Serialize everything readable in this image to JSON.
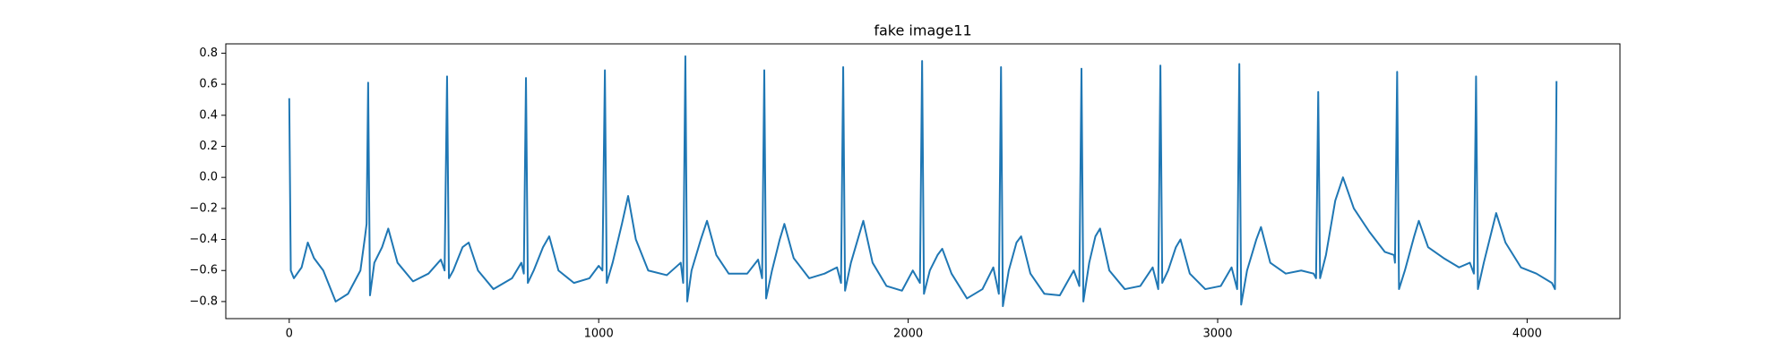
{
  "chart_data": {
    "type": "line",
    "title": "fake image11",
    "x": [
      0,
      5,
      15,
      40,
      60,
      80,
      110,
      150,
      190,
      230,
      245,
      250,
      255,
      261,
      275,
      300,
      320,
      350,
      400,
      450,
      490,
      502,
      510,
      516,
      530,
      560,
      580,
      610,
      660,
      720,
      750,
      758,
      765,
      771,
      790,
      820,
      840,
      870,
      920,
      970,
      1000,
      1012,
      1020,
      1026,
      1045,
      1075,
      1095,
      1120,
      1160,
      1220,
      1265,
      1273,
      1280,
      1286,
      1300,
      1330,
      1350,
      1380,
      1420,
      1480,
      1515,
      1528,
      1535,
      1541,
      1560,
      1585,
      1600,
      1630,
      1680,
      1730,
      1770,
      1783,
      1790,
      1796,
      1815,
      1840,
      1855,
      1885,
      1930,
      1980,
      2015,
      2038,
      2045,
      2051,
      2070,
      2095,
      2110,
      2140,
      2190,
      2240,
      2275,
      2293,
      2300,
      2306,
      2325,
      2350,
      2365,
      2395,
      2440,
      2490,
      2535,
      2553,
      2560,
      2566,
      2585,
      2605,
      2620,
      2650,
      2700,
      2750,
      2790,
      2808,
      2815,
      2821,
      2840,
      2865,
      2880,
      2910,
      2960,
      3010,
      3045,
      3063,
      3070,
      3076,
      3095,
      3125,
      3140,
      3170,
      3220,
      3270,
      3310,
      3318,
      3325,
      3331,
      3350,
      3380,
      3405,
      3440,
      3490,
      3540,
      3570,
      3573,
      3580,
      3586,
      3605,
      3635,
      3650,
      3680,
      3730,
      3780,
      3815,
      3828,
      3835,
      3841,
      3860,
      3885,
      3900,
      3930,
      3980,
      4030,
      4080,
      4090,
      4095
    ],
    "series": [
      {
        "color": "#1f77b4",
        "values": [
          0.51,
          -0.6,
          -0.65,
          -0.58,
          -0.42,
          -0.52,
          -0.6,
          -0.8,
          -0.75,
          -0.6,
          -0.38,
          -0.3,
          0.61,
          -0.76,
          -0.55,
          -0.45,
          -0.33,
          -0.55,
          -0.67,
          -0.62,
          -0.53,
          -0.6,
          0.65,
          -0.65,
          -0.6,
          -0.45,
          -0.42,
          -0.6,
          -0.72,
          -0.65,
          -0.55,
          -0.62,
          0.64,
          -0.68,
          -0.6,
          -0.45,
          -0.38,
          -0.6,
          -0.68,
          -0.65,
          -0.57,
          -0.6,
          0.69,
          -0.68,
          -0.55,
          -0.3,
          -0.12,
          -0.4,
          -0.6,
          -0.63,
          -0.55,
          -0.68,
          0.78,
          -0.8,
          -0.6,
          -0.4,
          -0.28,
          -0.5,
          -0.62,
          -0.62,
          -0.53,
          -0.65,
          0.69,
          -0.78,
          -0.6,
          -0.4,
          -0.3,
          -0.52,
          -0.65,
          -0.62,
          -0.58,
          -0.68,
          0.71,
          -0.73,
          -0.55,
          -0.38,
          -0.28,
          -0.55,
          -0.7,
          -0.73,
          -0.6,
          -0.68,
          0.75,
          -0.75,
          -0.6,
          -0.5,
          -0.46,
          -0.62,
          -0.78,
          -0.72,
          -0.58,
          -0.75,
          0.71,
          -0.83,
          -0.6,
          -0.42,
          -0.38,
          -0.62,
          -0.75,
          -0.76,
          -0.6,
          -0.7,
          0.7,
          -0.8,
          -0.55,
          -0.38,
          -0.33,
          -0.6,
          -0.72,
          -0.7,
          -0.58,
          -0.72,
          0.72,
          -0.68,
          -0.6,
          -0.45,
          -0.4,
          -0.62,
          -0.72,
          -0.7,
          -0.58,
          -0.72,
          0.73,
          -0.82,
          -0.6,
          -0.4,
          -0.32,
          -0.55,
          -0.62,
          -0.6,
          -0.62,
          -0.65,
          0.55,
          -0.65,
          -0.5,
          -0.15,
          0.0,
          -0.2,
          -0.35,
          -0.48,
          -0.5,
          -0.55,
          0.68,
          -0.72,
          -0.6,
          -0.38,
          -0.28,
          -0.45,
          -0.52,
          -0.58,
          -0.55,
          -0.62,
          0.65,
          -0.72,
          -0.55,
          -0.35,
          -0.23,
          -0.42,
          -0.58,
          -0.62,
          -0.68,
          -0.72,
          0.62
        ]
      }
    ],
    "xlim": [
      -205,
      4300
    ],
    "xticks": [
      0,
      1000,
      2000,
      3000,
      4000
    ],
    "ylim": [
      -0.91,
      0.86
    ],
    "yticks": [
      {
        "value": -0.8,
        "label": "−0.8"
      },
      {
        "value": -0.6,
        "label": "−0.6"
      },
      {
        "value": -0.4,
        "label": "−0.4"
      },
      {
        "value": -0.2,
        "label": "−0.2"
      },
      {
        "value": 0,
        "label": "0.0"
      },
      0.2,
      0.4,
      0.6,
      0.8
    ]
  }
}
